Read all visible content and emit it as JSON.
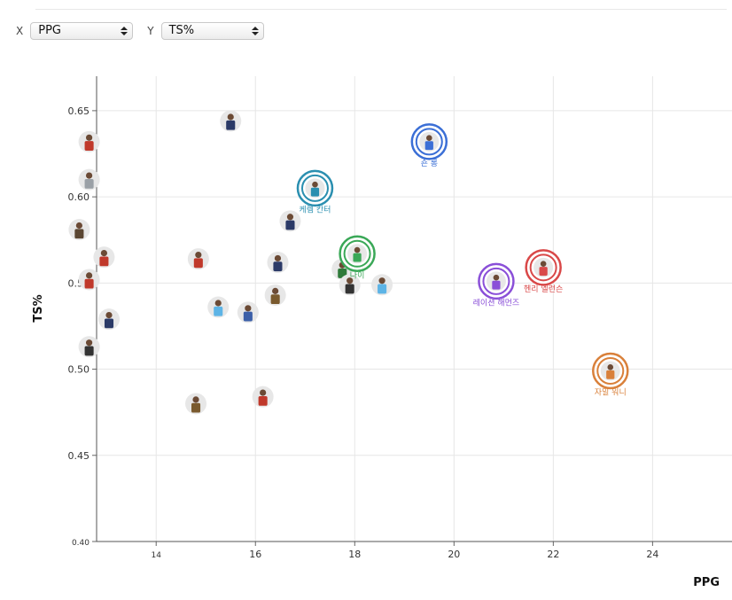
{
  "controls": {
    "x_tag": "X",
    "y_tag": "Y",
    "x_selected": "PPG",
    "y_selected": "TS%"
  },
  "chart_data": {
    "type": "scatter",
    "xlabel": "PPG",
    "ylabel": "TS%",
    "xlim": [
      12.8,
      25.6
    ],
    "ylim": [
      0.4,
      0.67
    ],
    "x_ticks": [
      14,
      16,
      18,
      20,
      22,
      24
    ],
    "y_ticks": [
      0.4,
      0.45,
      0.5,
      0.55,
      0.6,
      0.65
    ],
    "y_tick_labels": [
      "0.40",
      "0.45",
      "0.50",
      "0.55",
      "0.60",
      "0.65"
    ],
    "grid": true,
    "highlighted": [
      {
        "label": "숀 롱",
        "x": 19.5,
        "y": 0.632,
        "color": "#3b6fd6"
      },
      {
        "label": "케렘 칸터",
        "x": 17.2,
        "y": 0.605,
        "color": "#2a8fb0"
      },
      {
        "label": "나이",
        "x": 18.05,
        "y": 0.567,
        "color": "#3aa857"
      },
      {
        "label": "레이션 해먼즈",
        "x": 20.85,
        "y": 0.551,
        "color": "#8a4fd8"
      },
      {
        "label": "헨리 엘런슨",
        "x": 21.8,
        "y": 0.559,
        "color": "#d94848"
      },
      {
        "label": "자밀 워니",
        "x": 23.15,
        "y": 0.499,
        "color": "#d9803a"
      }
    ],
    "points": [
      {
        "x": 12.65,
        "y": 0.632,
        "color": "#c0392b"
      },
      {
        "x": 12.65,
        "y": 0.61,
        "color": "#9aa0a6"
      },
      {
        "x": 12.65,
        "y": 0.552,
        "color": "#c0392b"
      },
      {
        "x": 12.65,
        "y": 0.513,
        "color": "#333333"
      },
      {
        "x": 15.5,
        "y": 0.644,
        "color": "#2b3a67"
      },
      {
        "x": 16.7,
        "y": 0.586,
        "color": "#2b3a67"
      },
      {
        "x": 12.45,
        "y": 0.581,
        "color": "#5a4632"
      },
      {
        "x": 12.95,
        "y": 0.565,
        "color": "#c0392b"
      },
      {
        "x": 14.85,
        "y": 0.564,
        "color": "#c0392b"
      },
      {
        "x": 16.45,
        "y": 0.562,
        "color": "#2b3a67"
      },
      {
        "x": 17.75,
        "y": 0.558,
        "color": "#2f7a3a"
      },
      {
        "x": 17.9,
        "y": 0.549,
        "color": "#333333"
      },
      {
        "x": 18.55,
        "y": 0.549,
        "color": "#5db4e6"
      },
      {
        "x": 16.4,
        "y": 0.543,
        "color": "#7a5a2e"
      },
      {
        "x": 15.25,
        "y": 0.536,
        "color": "#5db4e6"
      },
      {
        "x": 15.85,
        "y": 0.533,
        "color": "#3b5fa8"
      },
      {
        "x": 13.05,
        "y": 0.529,
        "color": "#2b3a67"
      },
      {
        "x": 16.15,
        "y": 0.484,
        "color": "#c0392b"
      },
      {
        "x": 14.8,
        "y": 0.48,
        "color": "#7a5a2e"
      }
    ]
  }
}
